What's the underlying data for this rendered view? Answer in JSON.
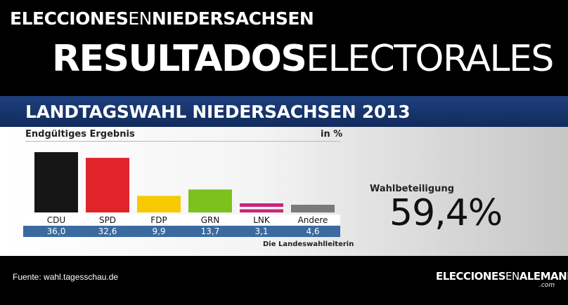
{
  "header": {
    "site_part1": "ELECCIONES",
    "site_part2": "EN",
    "site_part3": "NIEDERSACHSEN",
    "main_part1": "RESULTADOS",
    "main_part2": "ELECTORALES"
  },
  "panel": {
    "title": "LANDTAGSWAHL NIEDERSACHSEN 2013",
    "subtitle": "Endgültiges Ergebnis",
    "unit": "in %",
    "source_tag": "Die Landeswahlleiterin",
    "turnout_label": "Wahlbeteiligung",
    "turnout_value": "59,4%"
  },
  "chart_data": {
    "type": "bar",
    "title": "LANDTAGSWAHL NIEDERSACHSEN 2013",
    "subtitle": "Endgültiges Ergebnis",
    "unit": "in %",
    "categories": [
      "CDU",
      "SPD",
      "FDP",
      "GRN",
      "LNK",
      "Andere"
    ],
    "values": [
      36.0,
      32.6,
      9.9,
      13.7,
      3.1,
      4.6
    ],
    "value_labels": [
      "36,0",
      "32,6",
      "9,9",
      "13,7",
      "3,1",
      "4,6"
    ],
    "colors": [
      "#161616",
      "#e1232a",
      "#f7c900",
      "#7cc11e",
      "#c8257c",
      "#7a7a7a"
    ],
    "ylim": [
      0,
      36.0
    ]
  },
  "footer": {
    "source": "Fuente: wahl.tagesschau.de",
    "logo_part1": "ELECCIONES",
    "logo_part2": "EN",
    "logo_part3": "ALEMANIA",
    "logo_suffix": ".com"
  },
  "colors": {
    "title_bar": "#17356e",
    "value_strip": "#3b6aa0"
  }
}
